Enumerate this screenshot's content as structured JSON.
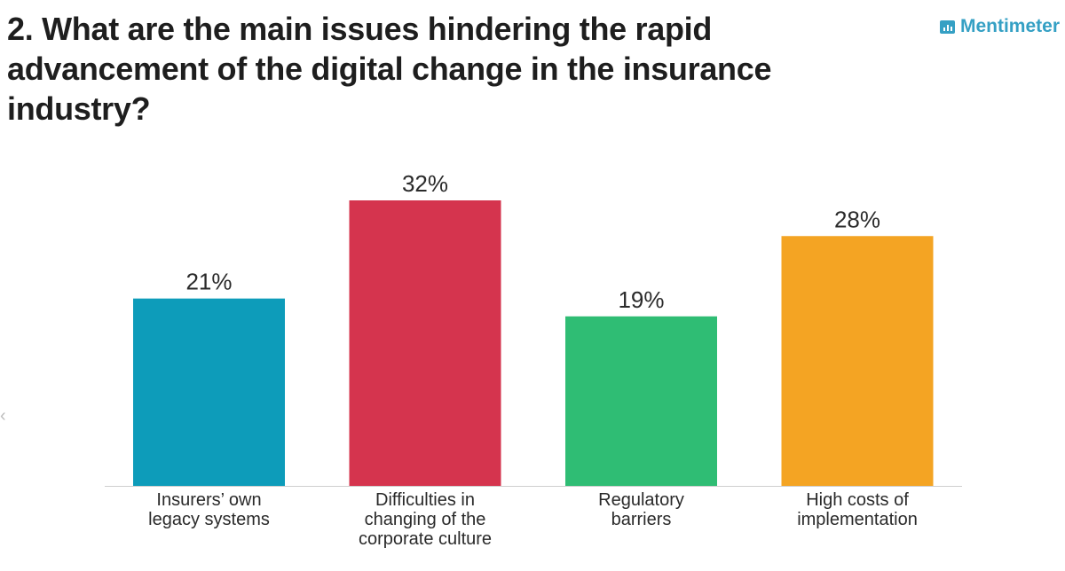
{
  "question": {
    "title": "2. What are the main issues hindering the rapid advancement of the digital change in the insurance industry?"
  },
  "brand": {
    "name": "Mentimeter",
    "icon": "bar-chart-icon",
    "color": "#35a0c4"
  },
  "chart_data": {
    "type": "bar",
    "categories": [
      [
        "Insurers’ own",
        "legacy systems"
      ],
      [
        "Difficulties in",
        "changing of the",
        "corporate culture"
      ],
      [
        "Regulatory",
        "barriers"
      ],
      [
        "High costs of",
        "implementation"
      ]
    ],
    "values": [
      21,
      32,
      19,
      28
    ],
    "value_labels": [
      "21%",
      "32%",
      "19%",
      "28%"
    ],
    "colors": [
      "#0d9cba",
      "#d5344e",
      "#2fbd74",
      "#f4a423"
    ],
    "unit": "%",
    "ylim": [
      0,
      32
    ],
    "grid": false,
    "legend": "none"
  }
}
